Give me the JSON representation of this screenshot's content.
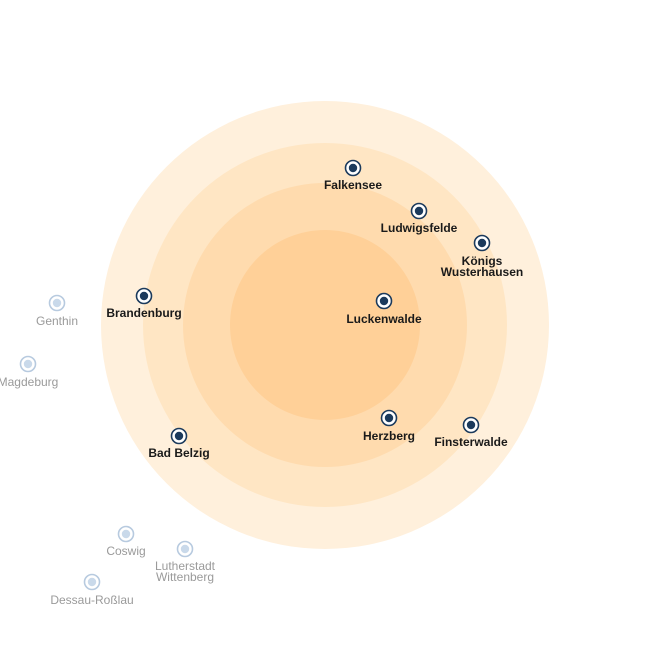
{
  "colors": {
    "ring_outer": "#fff0dc",
    "ring_3": "#ffe6c4",
    "ring_2": "#ffdbae",
    "ring_inner": "#ffd098",
    "active_dot_fill": "#1b3a5c",
    "active_dot_ring": "#1b3a5c",
    "inactive_dot_fill": "#c9d9ea",
    "inactive_dot_ring": "#b7cadf",
    "active_label": "#1a1a1a",
    "inactive_label": "#9a9a9a"
  },
  "cities": [
    {
      "id": "falkensee",
      "lines": [
        "Falkensee"
      ],
      "active": true
    },
    {
      "id": "ludwigsfelde",
      "lines": [
        "Ludwigsfelde"
      ],
      "active": true
    },
    {
      "id": "koenigs-wusterhausen",
      "lines": [
        "Königs",
        "Wusterhausen"
      ],
      "active": true
    },
    {
      "id": "brandenburg",
      "lines": [
        "Brandenburg"
      ],
      "active": true
    },
    {
      "id": "luckenwalde",
      "lines": [
        "Luckenwalde"
      ],
      "active": true
    },
    {
      "id": "herzberg",
      "lines": [
        "Herzberg"
      ],
      "active": true
    },
    {
      "id": "finsterwalde",
      "lines": [
        "Finsterwalde"
      ],
      "active": true
    },
    {
      "id": "bad-belzig",
      "lines": [
        "Bad Belzig"
      ],
      "active": true
    },
    {
      "id": "genthin",
      "lines": [
        "Genthin"
      ],
      "active": false
    },
    {
      "id": "magdeburg",
      "lines": [
        "Magdeburg"
      ],
      "active": false
    },
    {
      "id": "coswig",
      "lines": [
        "Coswig"
      ],
      "active": false
    },
    {
      "id": "lutherstadt-wittenberg",
      "lines": [
        "Lutherstadt",
        "Wittenberg"
      ],
      "active": false
    },
    {
      "id": "dessau-rosslau",
      "lines": [
        "Dessau-Roßlau"
      ],
      "active": false
    }
  ]
}
